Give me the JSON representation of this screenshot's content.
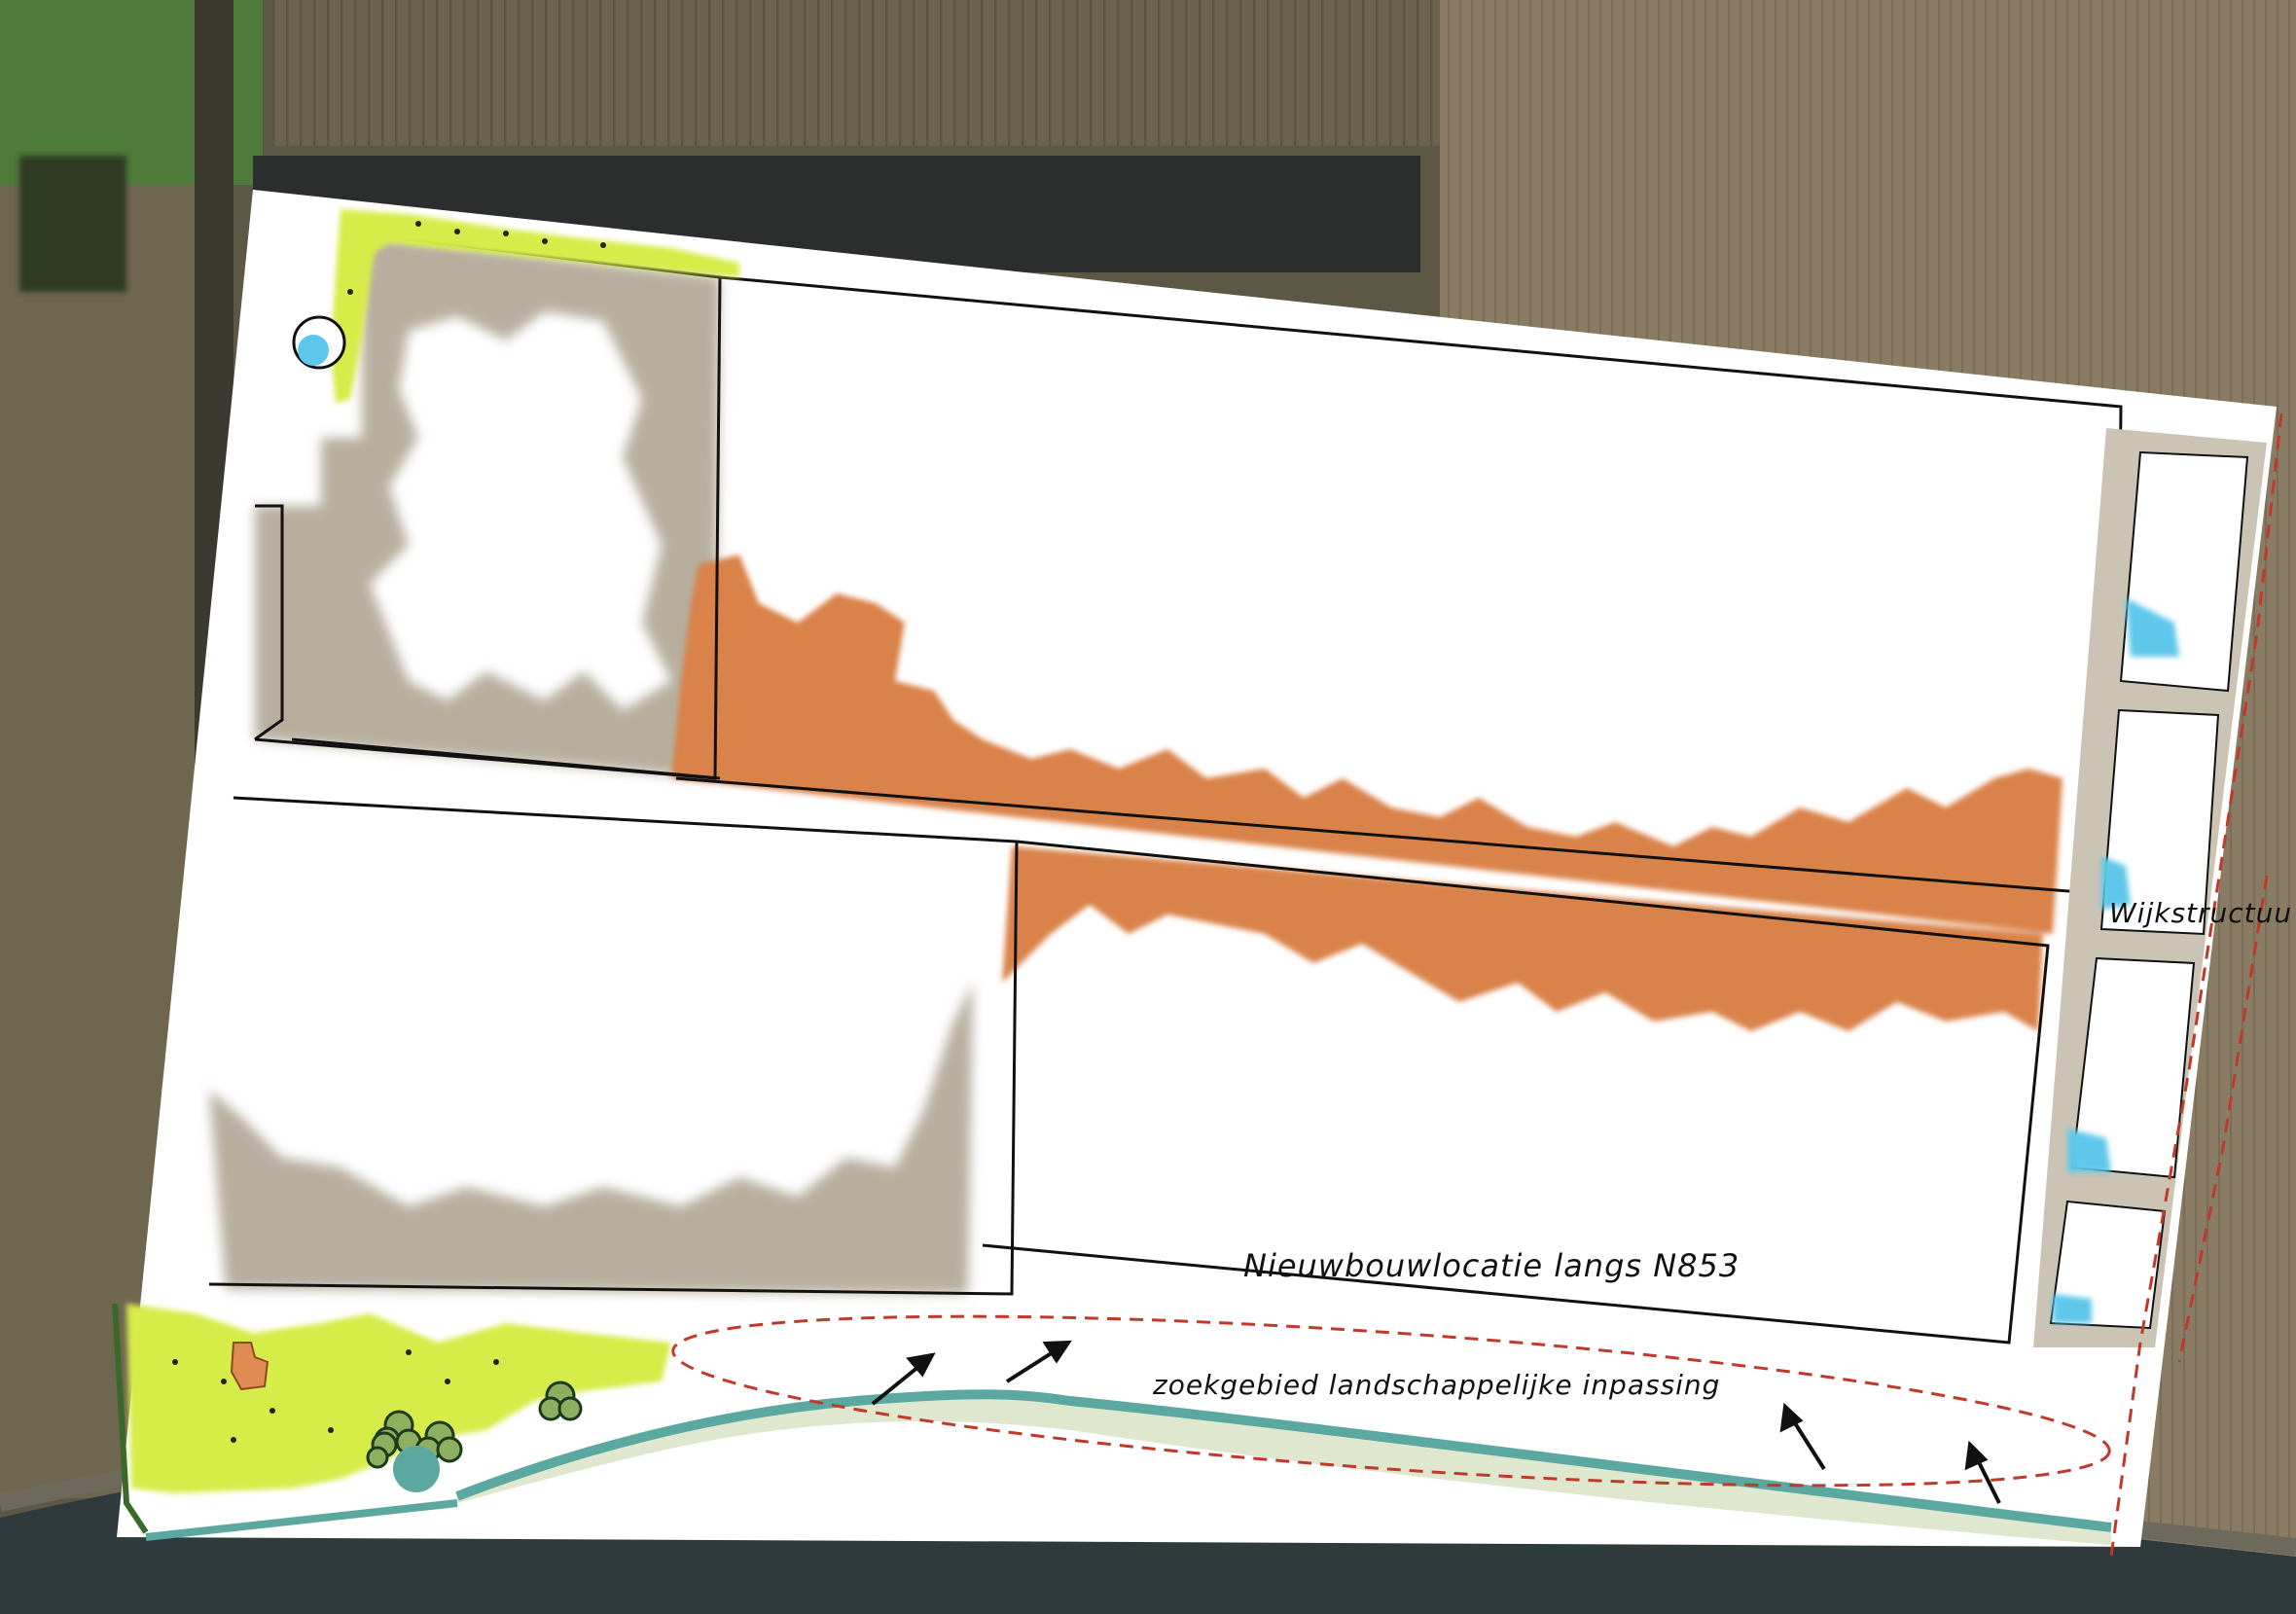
{
  "labels": {
    "nieuwbouw": "Nieuwbouwlocatie langs N853",
    "zoekgebied": "zoekgebied landschappelijke inpassing",
    "wijkstructuur": "Wijkstructuu"
  },
  "colors": {
    "plan_base": "#ffffff",
    "built_zone_grey": "#b7ae9e",
    "built_zone_orange": "#d9824a",
    "green_zone": "#d6ec4a",
    "water": "#5ec8ea",
    "dike_strip": "#5aa8a0",
    "dike_band": "#dfe8cf",
    "search_area_outline": "#c0392b",
    "field_dark": "#5e5846",
    "field_light": "#8a7d66",
    "canal": "#2f3a3c"
  },
  "icons": [
    "tree-icon",
    "house-icon",
    "pond-icon",
    "arrow-icon"
  ]
}
